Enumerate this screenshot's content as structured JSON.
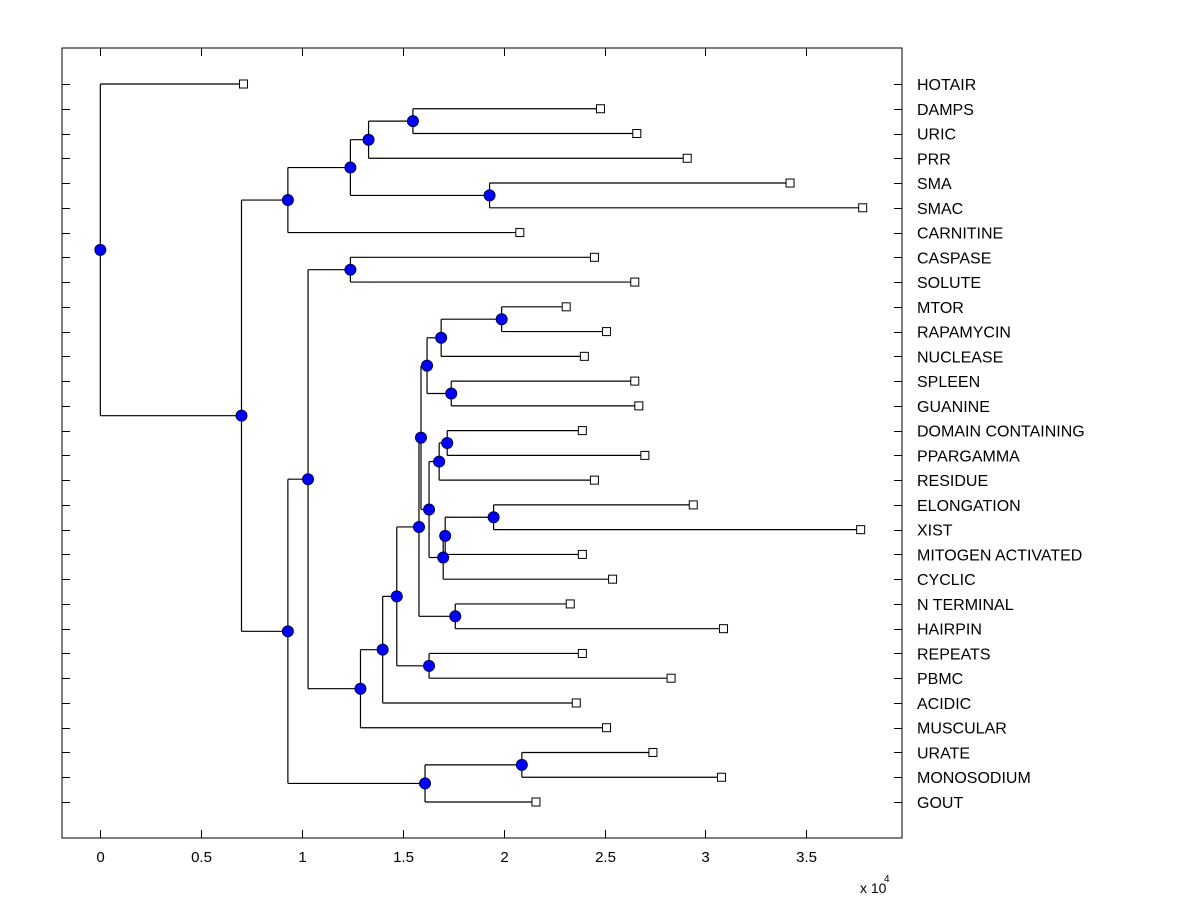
{
  "chart_data": {
    "type": "dendrogram",
    "title": "",
    "xlabel": "",
    "ylabel": "",
    "x_multiplier_label": "x 10",
    "x_multiplier_exponent": "4",
    "xlim": [
      -0.19,
      3.975
    ],
    "xticks": [
      0,
      0.5,
      1,
      1.5,
      2,
      2.5,
      3,
      3.5
    ],
    "xtick_labels": [
      "0",
      "0.5",
      "1",
      "1.5",
      "2",
      "2.5",
      "3",
      "3.5"
    ],
    "grid": false,
    "colors": {
      "node_fill": "#0000ff",
      "node_stroke": "#00004d",
      "line": "#000000",
      "leaf_fill": "#ffffff"
    },
    "leaves": [
      {
        "name": "HOTAIR",
        "x": 0.71
      },
      {
        "name": "DAMPS",
        "x": 2.48
      },
      {
        "name": "URIC",
        "x": 2.66
      },
      {
        "name": "PRR",
        "x": 2.91
      },
      {
        "name": "SMA",
        "x": 3.42
      },
      {
        "name": "SMAC",
        "x": 3.78
      },
      {
        "name": "CARNITINE",
        "x": 2.08
      },
      {
        "name": "CASPASE",
        "x": 2.45
      },
      {
        "name": "SOLUTE",
        "x": 2.65
      },
      {
        "name": "MTOR",
        "x": 2.31
      },
      {
        "name": "RAPAMYCIN",
        "x": 2.51
      },
      {
        "name": "NUCLEASE",
        "x": 2.4
      },
      {
        "name": "SPLEEN",
        "x": 2.65
      },
      {
        "name": "GUANINE",
        "x": 2.67
      },
      {
        "name": "DOMAIN CONTAINING",
        "x": 2.39
      },
      {
        "name": "PPARGAMMA",
        "x": 2.7
      },
      {
        "name": "RESIDUE",
        "x": 2.45
      },
      {
        "name": "ELONGATION",
        "x": 2.94
      },
      {
        "name": "XIST",
        "x": 3.77
      },
      {
        "name": "MITOGEN ACTIVATED",
        "x": 2.39
      },
      {
        "name": "CYCLIC",
        "x": 2.54
      },
      {
        "name": "N TERMINAL",
        "x": 2.33
      },
      {
        "name": "HAIRPIN",
        "x": 3.09
      },
      {
        "name": "REPEATS",
        "x": 2.39
      },
      {
        "name": "PBMC",
        "x": 2.83
      },
      {
        "name": "ACIDIC",
        "x": 2.36
      },
      {
        "name": "MUSCULAR",
        "x": 2.51
      },
      {
        "name": "URATE",
        "x": 2.74
      },
      {
        "name": "MONOSODIUM",
        "x": 3.08
      },
      {
        "name": "GOUT",
        "x": 2.16
      }
    ],
    "tree": {
      "x": 0.0,
      "children": [
        "HOTAIR",
        {
          "x": 0.7,
          "children": [
            {
              "x": 0.93,
              "children": [
                {
                  "x": 1.24,
                  "children": [
                    {
                      "x": 1.33,
                      "children": [
                        {
                          "x": 1.55,
                          "children": [
                            "DAMPS",
                            "URIC"
                          ]
                        },
                        "PRR"
                      ]
                    },
                    {
                      "x": 1.93,
                      "children": [
                        "SMA",
                        "SMAC"
                      ]
                    }
                  ]
                },
                "CARNITINE"
              ]
            },
            {
              "x": 0.93,
              "children": [
                {
                  "x": 1.03,
                  "children": [
                    {
                      "x": 1.24,
                      "children": [
                        "CASPASE",
                        "SOLUTE"
                      ]
                    },
                    {
                      "x": 1.29,
                      "children": [
                        {
                          "x": 1.4,
                          "children": [
                            {
                              "x": 1.47,
                              "children": [
                                {
                                  "x": 1.58,
                                  "children": [
                                    {
                                      "x": 1.59,
                                      "children": [
                                        {
                                          "x": 1.62,
                                          "children": [
                                            {
                                              "x": 1.69,
                                              "children": [
                                                {
                                                  "x": 1.99,
                                                  "children": [
                                                    "MTOR",
                                                    "RAPAMYCIN"
                                                  ]
                                                },
                                                "NUCLEASE"
                                              ]
                                            },
                                            {
                                              "x": 1.74,
                                              "children": [
                                                "SPLEEN",
                                                "GUANINE"
                                              ]
                                            }
                                          ]
                                        },
                                        {
                                          "x": 1.63,
                                          "children": [
                                            {
                                              "x": 1.68,
                                              "children": [
                                                {
                                                  "x": 1.72,
                                                  "children": [
                                                    "DOMAIN CONTAINING",
                                                    "PPARGAMMA"
                                                  ]
                                                },
                                                "RESIDUE"
                                              ]
                                            },
                                            {
                                              "x": 1.7,
                                              "children": [
                                                {
                                                  "x": 1.71,
                                                  "children": [
                                                    {
                                                      "x": 1.95,
                                                      "children": [
                                                        "ELONGATION",
                                                        "XIST"
                                                      ]
                                                    },
                                                    "MITOGEN ACTIVATED"
                                                  ]
                                                },
                                                "CYCLIC"
                                              ]
                                            }
                                          ]
                                        }
                                      ]
                                    },
                                    {
                                      "x": 1.76,
                                      "children": [
                                        "N TERMINAL",
                                        "HAIRPIN"
                                      ]
                                    }
                                  ]
                                },
                                {
                                  "x": 1.63,
                                  "children": [
                                    "REPEATS",
                                    "PBMC"
                                  ]
                                }
                              ]
                            },
                            "ACIDIC"
                          ]
                        },
                        "MUSCULAR"
                      ]
                    }
                  ]
                },
                {
                  "x": 1.61,
                  "children": [
                    {
                      "x": 2.09,
                      "children": [
                        "URATE",
                        "MONOSODIUM"
                      ]
                    },
                    "GOUT"
                  ]
                }
              ]
            }
          ]
        }
      ]
    }
  }
}
